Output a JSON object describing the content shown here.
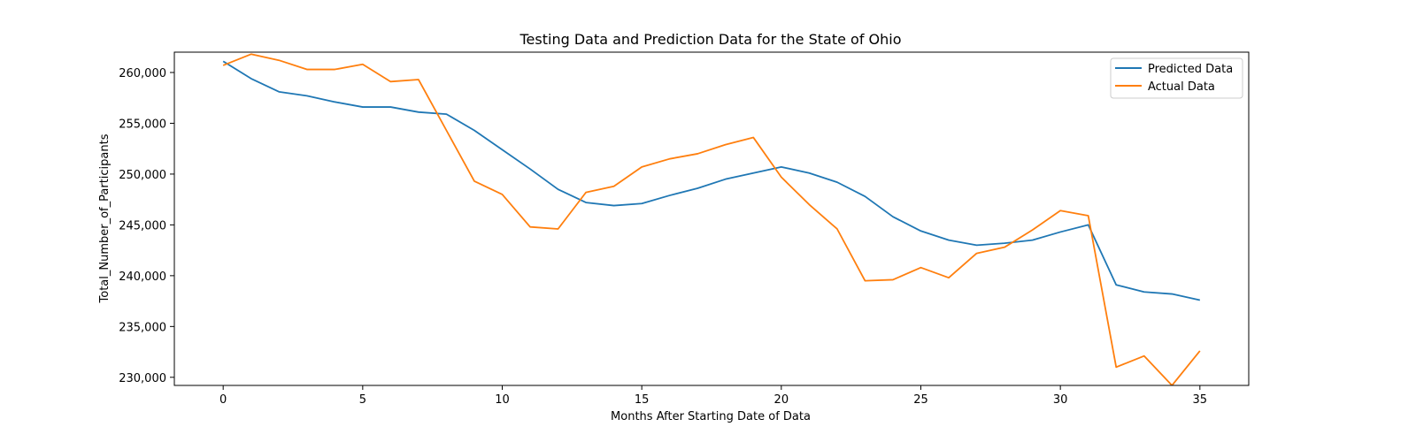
{
  "chart_data": {
    "type": "line",
    "title": "Testing Data and Prediction Data for the State of Ohio",
    "xlabel": "Months After Starting Date of Data",
    "ylabel": "Total_Number_of_Participants",
    "xlim": [
      -1.75,
      36.75
    ],
    "ylim": [
      229200,
      262000
    ],
    "x_ticks": [
      0,
      5,
      10,
      15,
      20,
      25,
      30,
      35
    ],
    "y_ticks": [
      230000,
      235000,
      240000,
      245000,
      250000,
      255000,
      260000
    ],
    "y_tick_labels": [
      "230,000",
      "235,000",
      "240,000",
      "245,000",
      "250,000",
      "255,000",
      "260,000"
    ],
    "x": [
      0,
      1,
      2,
      3,
      4,
      5,
      6,
      7,
      8,
      9,
      10,
      11,
      12,
      13,
      14,
      15,
      16,
      17,
      18,
      19,
      20,
      21,
      22,
      23,
      24,
      25,
      26,
      27,
      28,
      29,
      30,
      31,
      32,
      33,
      34,
      35
    ],
    "series": [
      {
        "name": "Predicted Data",
        "color": "#1f77b4",
        "values": [
          261100,
          259400,
          258100,
          257700,
          257100,
          256600,
          256600,
          256100,
          255900,
          254300,
          252400,
          250500,
          248500,
          247200,
          246900,
          247100,
          247900,
          248600,
          249500,
          250100,
          250700,
          250100,
          249200,
          247800,
          245800,
          244400,
          243500,
          243000,
          243200,
          243500,
          244300,
          245000,
          239100,
          238400,
          238200,
          237600
        ]
      },
      {
        "name": "Actual Data",
        "color": "#ff7f0e",
        "values": [
          260700,
          261800,
          261200,
          260300,
          260300,
          260800,
          259100,
          259300,
          254300,
          249300,
          248000,
          244800,
          244600,
          248200,
          248800,
          250700,
          251500,
          252000,
          252900,
          253600,
          249700,
          247000,
          244600,
          239500,
          239600,
          240800,
          239800,
          242200,
          242800,
          244500,
          246400,
          245900,
          231000,
          232100,
          229200,
          232600
        ]
      }
    ],
    "legend": {
      "position": "top-right",
      "frame": true
    },
    "grid": false
  }
}
